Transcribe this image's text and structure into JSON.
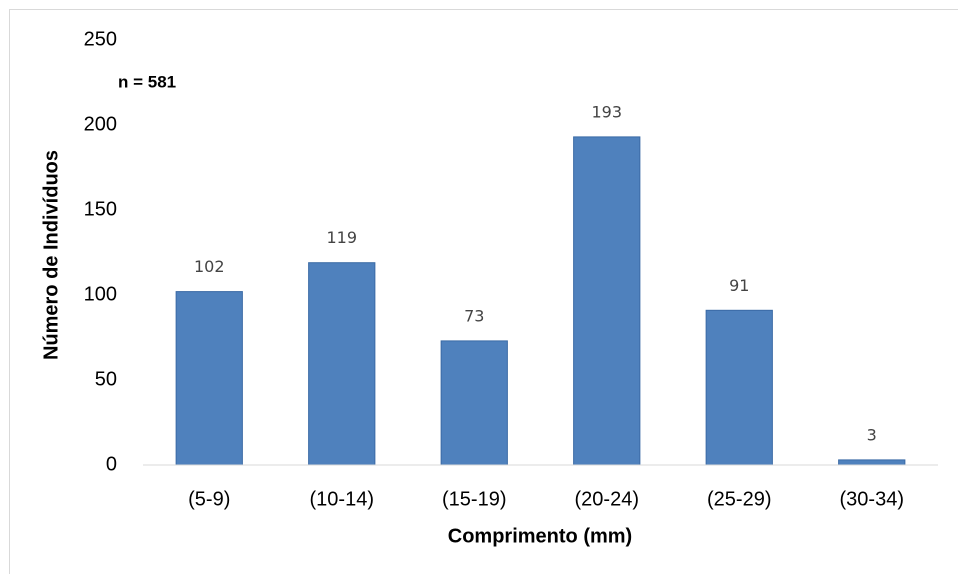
{
  "chart_data": {
    "type": "bar",
    "annotation": "n = 581",
    "x_label": "Comprimento (mm)",
    "y_label": "Número de Indivíduos",
    "categories": [
      "(5-9)",
      "(10-14)",
      "(15-19)",
      "(20-24)",
      "(25-29)",
      "(30-34)"
    ],
    "values": [
      102,
      119,
      73,
      193,
      91,
      3
    ],
    "color": "#4f81bd",
    "ylim": [
      0,
      250
    ],
    "yticks": [
      0,
      50,
      100,
      150,
      200,
      250
    ],
    "grid": false
  }
}
